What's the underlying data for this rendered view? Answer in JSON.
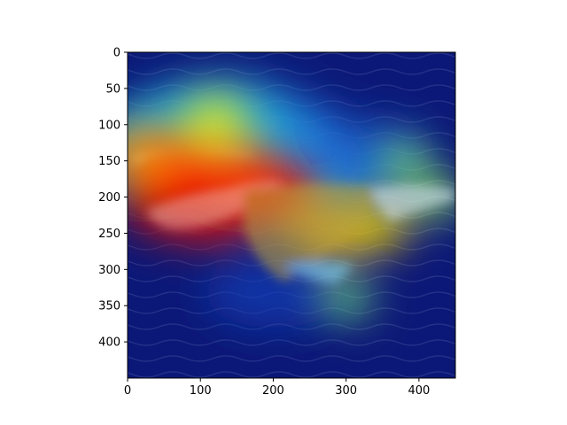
{
  "chart_data": {
    "type": "heatmap",
    "title": "",
    "xlabel": "",
    "ylabel": "",
    "xlim": [
      0,
      450
    ],
    "ylim": [
      450,
      0
    ],
    "x_ticks": [
      0,
      100,
      200,
      300,
      400
    ],
    "y_ticks": [
      0,
      50,
      100,
      150,
      200,
      250,
      300,
      350,
      400
    ],
    "colormap": "jet",
    "background_image": "seabird-over-dark-blue-water",
    "grid": false,
    "legend": "none",
    "hotspots": [
      {
        "x": 60,
        "y": 205,
        "value": 1.0
      },
      {
        "x": 110,
        "y": 215,
        "value": 0.95
      },
      {
        "x": 200,
        "y": 200,
        "value": 0.88
      },
      {
        "x": 60,
        "y": 160,
        "value": 0.85
      },
      {
        "x": 150,
        "y": 165,
        "value": 0.75
      },
      {
        "x": 20,
        "y": 140,
        "value": 0.6
      },
      {
        "x": 280,
        "y": 250,
        "value": 0.55
      },
      {
        "x": 340,
        "y": 240,
        "value": 0.5
      },
      {
        "x": 120,
        "y": 95,
        "value": 0.45
      },
      {
        "x": 380,
        "y": 150,
        "value": 0.25
      },
      {
        "x": 420,
        "y": 200,
        "value": 0.3
      },
      {
        "x": 300,
        "y": 340,
        "value": 0.25
      }
    ]
  }
}
